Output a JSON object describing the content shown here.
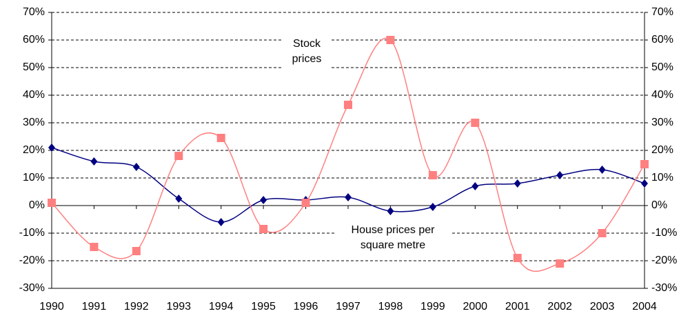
{
  "chart_data": {
    "type": "line",
    "x": [
      1990,
      1991,
      1992,
      1993,
      1994,
      1995,
      1996,
      1997,
      1998,
      1999,
      2000,
      2001,
      2002,
      2003,
      2004
    ],
    "xlim": [
      1990,
      2004
    ],
    "xticks": [
      1990,
      1991,
      1992,
      1993,
      1994,
      1995,
      1996,
      1997,
      1998,
      1999,
      2000,
      2001,
      2002,
      2003,
      2004
    ],
    "series": [
      {
        "color": "#000080",
        "marker": "diamond",
        "values": [
          21,
          16,
          14,
          2.5,
          -6,
          2,
          2,
          3,
          -2,
          -0.5,
          7,
          8,
          11,
          13,
          8
        ]
      },
      {
        "color": "#ff8080",
        "marker": "square",
        "values": [
          1,
          -15,
          -16.5,
          18,
          24.5,
          -8.5,
          1,
          36.5,
          60,
          11,
          30,
          -19,
          -21,
          -10,
          15
        ]
      }
    ],
    "ylim": [
      -30,
      70
    ],
    "yticks": [
      {
        "value": -30,
        "label": "-30%"
      },
      {
        "value": -20,
        "label": "-20%"
      },
      {
        "value": -10,
        "label": "-10%"
      },
      {
        "value": 0,
        "label": "0%"
      },
      {
        "value": 10,
        "label": "10%"
      },
      {
        "value": 20,
        "label": "20%"
      },
      {
        "value": 30,
        "label": "30%"
      },
      {
        "value": 40,
        "label": "40%"
      },
      {
        "value": 50,
        "label": "50%"
      },
      {
        "value": 60,
        "label": "60%"
      },
      {
        "value": 70,
        "label": "70%"
      }
    ],
    "y2lim": [
      -30,
      70
    ],
    "y2ticks": [
      {
        "value": -30,
        "label": "-30%"
      },
      {
        "value": -20,
        "label": "-20%"
      },
      {
        "value": -10,
        "label": "-10%"
      },
      {
        "value": 0,
        "label": "0%"
      },
      {
        "value": 10,
        "label": "10%"
      },
      {
        "value": 20,
        "label": "20%"
      },
      {
        "value": 30,
        "label": "30%"
      },
      {
        "value": 40,
        "label": "40%"
      },
      {
        "value": 50,
        "label": "50%"
      },
      {
        "value": 60,
        "label": "60%"
      },
      {
        "value": 70,
        "label": "70%"
      }
    ],
    "grid": true,
    "annotations": [
      [
        "Stock",
        "prices"
      ],
      [
        "House prices per",
        "square metre"
      ]
    ]
  }
}
